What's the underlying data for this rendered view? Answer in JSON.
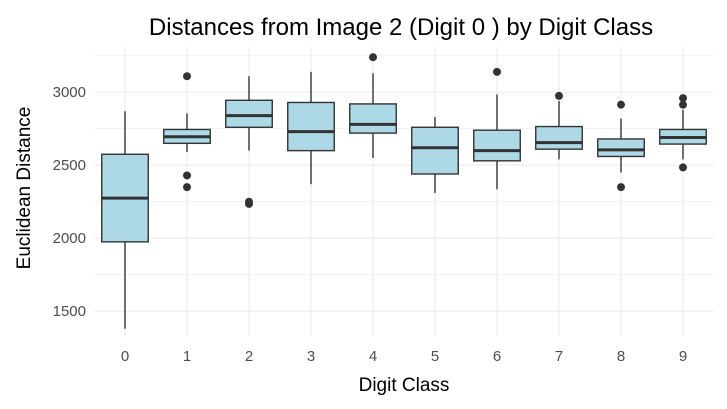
{
  "chart_data": {
    "type": "box",
    "title": "Distances from Image 2 (Digit 0 ) by Digit Class",
    "xlabel": "Digit Class",
    "ylabel": "Euclidean Distance",
    "categories": [
      "0",
      "1",
      "2",
      "3",
      "4",
      "5",
      "6",
      "7",
      "8",
      "9"
    ],
    "yticks": [
      1500,
      2000,
      2500,
      3000
    ],
    "ylim": [
      1330,
      3310
    ],
    "grid": true,
    "fill_color": "#add8e6",
    "line_color": "#333333",
    "grid_color": "#ebebeb",
    "boxes": [
      {
        "category": "0",
        "min": 1380,
        "q1": 1975,
        "median": 2275,
        "q3": 2575,
        "max": 2870,
        "outliers": []
      },
      {
        "category": "1",
        "min": 2590,
        "q1": 2650,
        "median": 2695,
        "q3": 2745,
        "max": 2855,
        "outliers": [
          3110,
          2430,
          2350
        ]
      },
      {
        "category": "2",
        "min": 2600,
        "q1": 2760,
        "median": 2840,
        "q3": 2945,
        "max": 3110,
        "outliers": [
          2250,
          2235
        ]
      },
      {
        "category": "3",
        "min": 2370,
        "q1": 2600,
        "median": 2730,
        "q3": 2930,
        "max": 3140,
        "outliers": []
      },
      {
        "category": "4",
        "min": 2550,
        "q1": 2720,
        "median": 2780,
        "q3": 2920,
        "max": 3130,
        "outliers": [
          3240
        ]
      },
      {
        "category": "5",
        "min": 2310,
        "q1": 2440,
        "median": 2620,
        "q3": 2760,
        "max": 2830,
        "outliers": []
      },
      {
        "category": "6",
        "min": 2335,
        "q1": 2530,
        "median": 2600,
        "q3": 2740,
        "max": 2985,
        "outliers": [
          3140
        ]
      },
      {
        "category": "7",
        "min": 2540,
        "q1": 2610,
        "median": 2655,
        "q3": 2765,
        "max": 2940,
        "outliers": [
          2975
        ]
      },
      {
        "category": "8",
        "min": 2450,
        "q1": 2560,
        "median": 2605,
        "q3": 2680,
        "max": 2820,
        "outliers": [
          2915,
          2350
        ]
      },
      {
        "category": "9",
        "min": 2540,
        "q1": 2645,
        "median": 2690,
        "q3": 2745,
        "max": 2880,
        "outliers": [
          2960,
          2915,
          2485
        ]
      }
    ]
  }
}
